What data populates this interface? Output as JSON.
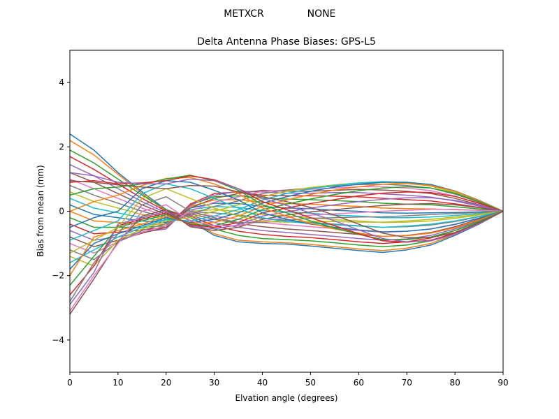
{
  "figure": {
    "suptitle_left": "METXCR",
    "suptitle_right": "NONE"
  },
  "chart_data": {
    "type": "line",
    "title": "Delta Antenna Phase Biases: GPS-L5",
    "xlabel": "Elvation angle (degrees)",
    "ylabel": "Bias from mean (mm)",
    "xlim": [
      0,
      90
    ],
    "ylim": [
      -5,
      5
    ],
    "xticks": [
      0,
      10,
      20,
      30,
      40,
      50,
      60,
      70,
      80,
      90
    ],
    "xtick_labels": [
      "0",
      "10",
      "20",
      "30",
      "40",
      "50",
      "60",
      "70",
      "80",
      "90"
    ],
    "yticks": [
      -4,
      -2,
      0,
      2,
      4
    ],
    "ytick_labels": [
      "−4",
      "−2",
      "0",
      "2",
      "4"
    ],
    "grid": false,
    "legend": "none",
    "colors": [
      "#1f77b4",
      "#ff7f0e",
      "#2ca02c",
      "#d62728",
      "#9467bd",
      "#8c564b",
      "#e377c2",
      "#7f7f7f",
      "#bcbd22",
      "#17becf"
    ],
    "x": [
      0,
      5,
      10,
      15,
      20,
      25,
      30,
      35,
      40,
      45,
      50,
      55,
      60,
      65,
      70,
      75,
      80,
      85,
      90
    ],
    "series": [
      {
        "values": [
          2.4,
          1.9,
          1.2,
          0.6,
          0.05,
          -0.3,
          -0.75,
          -0.95,
          -1.0,
          -1.02,
          -1.08,
          -1.15,
          -1.22,
          -1.28,
          -1.2,
          -1.05,
          -0.75,
          -0.4,
          0.0
        ]
      },
      {
        "values": [
          2.2,
          1.75,
          1.15,
          0.55,
          0.0,
          -0.28,
          -0.7,
          -0.9,
          -0.95,
          -0.98,
          -1.03,
          -1.1,
          -1.17,
          -1.22,
          -1.15,
          -1.0,
          -0.72,
          -0.38,
          0.0
        ]
      },
      {
        "values": [
          1.9,
          1.5,
          1.0,
          0.5,
          0.05,
          -0.2,
          -0.55,
          -0.75,
          -0.85,
          -0.88,
          -0.92,
          -0.98,
          -1.05,
          -1.1,
          -1.05,
          -0.92,
          -0.66,
          -0.35,
          0.0
        ]
      },
      {
        "values": [
          1.7,
          1.3,
          0.85,
          0.4,
          0.0,
          -0.15,
          -0.45,
          -0.62,
          -0.72,
          -0.78,
          -0.82,
          -0.88,
          -0.95,
          -1.0,
          -0.95,
          -0.83,
          -0.6,
          -0.32,
          0.0
        ]
      },
      {
        "values": [
          1.45,
          1.1,
          0.7,
          0.3,
          -0.05,
          -0.12,
          -0.35,
          -0.5,
          -0.6,
          -0.66,
          -0.72,
          -0.78,
          -0.85,
          -0.9,
          -0.86,
          -0.75,
          -0.55,
          -0.29,
          0.0
        ]
      },
      {
        "values": [
          1.2,
          0.9,
          0.55,
          0.2,
          -0.1,
          -0.08,
          -0.25,
          -0.38,
          -0.48,
          -0.55,
          -0.6,
          -0.66,
          -0.72,
          -0.78,
          -0.75,
          -0.66,
          -0.48,
          -0.25,
          0.0
        ]
      },
      {
        "values": [
          1.0,
          0.7,
          0.4,
          0.1,
          -0.15,
          -0.05,
          -0.15,
          -0.25,
          -0.35,
          -0.42,
          -0.48,
          -0.54,
          -0.6,
          -0.65,
          -0.62,
          -0.55,
          -0.4,
          -0.21,
          0.0
        ]
      },
      {
        "values": [
          0.8,
          0.5,
          0.25,
          0.0,
          -0.2,
          -0.02,
          -0.05,
          -0.12,
          -0.22,
          -0.28,
          -0.34,
          -0.4,
          -0.45,
          -0.5,
          -0.48,
          -0.43,
          -0.32,
          -0.17,
          0.0
        ]
      },
      {
        "values": [
          0.6,
          0.3,
          0.1,
          -0.1,
          -0.25,
          0.0,
          0.05,
          0.0,
          -0.1,
          -0.15,
          -0.2,
          -0.26,
          -0.3,
          -0.35,
          -0.34,
          -0.3,
          -0.22,
          -0.12,
          0.0
        ]
      },
      {
        "values": [
          0.4,
          0.1,
          -0.05,
          -0.2,
          -0.3,
          0.05,
          0.15,
          0.12,
          0.02,
          -0.02,
          -0.06,
          -0.12,
          -0.15,
          -0.2,
          -0.2,
          -0.18,
          -0.13,
          -0.07,
          0.0
        ]
      },
      {
        "values": [
          0.2,
          -0.1,
          -0.2,
          -0.3,
          -0.35,
          0.1,
          0.25,
          0.24,
          0.15,
          0.1,
          0.08,
          0.03,
          0.0,
          -0.05,
          -0.06,
          -0.05,
          -0.04,
          -0.02,
          0.0
        ]
      },
      {
        "values": [
          0.0,
          -0.3,
          -0.35,
          -0.4,
          -0.4,
          0.15,
          0.35,
          0.36,
          0.28,
          0.24,
          0.22,
          0.18,
          0.15,
          0.1,
          0.08,
          0.07,
          0.05,
          0.03,
          0.0
        ]
      },
      {
        "values": [
          -0.2,
          -0.5,
          -0.5,
          -0.5,
          -0.45,
          0.2,
          0.45,
          0.48,
          0.4,
          0.38,
          0.36,
          0.33,
          0.3,
          0.25,
          0.22,
          0.2,
          0.14,
          0.07,
          0.0
        ]
      },
      {
        "values": [
          -0.4,
          -0.7,
          -0.65,
          -0.58,
          -0.5,
          0.22,
          0.55,
          0.6,
          0.5,
          0.48,
          0.48,
          0.47,
          0.45,
          0.4,
          0.36,
          0.32,
          0.23,
          0.12,
          0.0
        ]
      },
      {
        "values": [
          -0.6,
          -0.9,
          -0.8,
          -0.65,
          -0.55,
          0.18,
          0.5,
          0.62,
          0.6,
          0.56,
          0.56,
          0.58,
          0.58,
          0.54,
          0.5,
          0.44,
          0.32,
          0.16,
          0.0
        ]
      },
      {
        "values": [
          -0.8,
          -1.1,
          -0.9,
          -0.68,
          -0.5,
          0.1,
          0.4,
          0.55,
          0.65,
          0.62,
          0.62,
          0.65,
          0.68,
          0.66,
          0.62,
          0.55,
          0.4,
          0.2,
          0.0
        ]
      },
      {
        "values": [
          -1.0,
          -1.3,
          -0.95,
          -0.65,
          -0.45,
          0.0,
          0.28,
          0.45,
          0.62,
          0.66,
          0.68,
          0.72,
          0.76,
          0.76,
          0.72,
          0.64,
          0.47,
          0.24,
          0.0
        ]
      },
      {
        "values": [
          -1.2,
          -1.5,
          -0.95,
          -0.6,
          -0.38,
          -0.1,
          0.15,
          0.32,
          0.55,
          0.66,
          0.72,
          0.78,
          0.83,
          0.84,
          0.8,
          0.72,
          0.53,
          0.28,
          0.0
        ]
      },
      {
        "values": [
          -1.4,
          -1.7,
          -0.9,
          -0.55,
          -0.3,
          -0.2,
          0.0,
          0.2,
          0.45,
          0.62,
          0.74,
          0.82,
          0.88,
          0.9,
          0.87,
          0.78,
          0.58,
          0.3,
          0.0
        ]
      },
      {
        "values": [
          -1.6,
          -1.2,
          -0.8,
          -0.5,
          -0.25,
          -0.3,
          -0.15,
          0.05,
          0.35,
          0.55,
          0.7,
          0.8,
          0.88,
          0.92,
          0.9,
          0.82,
          0.62,
          0.33,
          0.0
        ]
      },
      {
        "values": [
          -1.8,
          -1.0,
          -0.7,
          -0.45,
          -0.2,
          -0.35,
          -0.25,
          -0.05,
          0.25,
          0.45,
          0.62,
          0.75,
          0.84,
          0.9,
          0.9,
          0.83,
          0.63,
          0.34,
          0.0
        ]
      },
      {
        "values": [
          -2.0,
          -0.8,
          -0.6,
          -0.4,
          -0.15,
          -0.38,
          -0.35,
          -0.15,
          0.15,
          0.35,
          0.52,
          0.66,
          0.76,
          0.84,
          0.86,
          0.8,
          0.62,
          0.33,
          0.0
        ]
      },
      {
        "values": [
          -2.3,
          -1.4,
          -0.5,
          -0.3,
          -0.1,
          -0.4,
          -0.45,
          -0.25,
          0.05,
          0.22,
          0.38,
          0.52,
          0.64,
          0.72,
          0.76,
          0.72,
          0.56,
          0.3,
          0.0
        ]
      },
      {
        "values": [
          -2.6,
          -1.7,
          -0.45,
          -0.25,
          -0.05,
          -0.42,
          -0.5,
          -0.35,
          -0.05,
          0.1,
          0.24,
          0.36,
          0.48,
          0.56,
          0.6,
          0.58,
          0.46,
          0.25,
          0.0
        ]
      },
      {
        "values": [
          -2.9,
          -1.9,
          -0.4,
          -0.2,
          0.0,
          -0.45,
          -0.55,
          -0.42,
          -0.15,
          -0.02,
          0.1,
          0.2,
          0.3,
          0.37,
          0.42,
          0.42,
          0.34,
          0.19,
          0.0
        ]
      },
      {
        "values": [
          -3.2,
          -2.1,
          -0.95,
          -0.15,
          0.05,
          -0.48,
          -0.6,
          -0.5,
          -0.25,
          -0.12,
          -0.02,
          0.05,
          0.12,
          0.18,
          0.22,
          0.24,
          0.2,
          0.11,
          0.0
        ]
      },
      {
        "values": [
          -3.1,
          -2.0,
          -1.0,
          0.0,
          0.2,
          -0.3,
          -0.45,
          -0.45,
          -0.3,
          -0.2,
          -0.12,
          -0.08,
          -0.04,
          0.0,
          0.03,
          0.06,
          0.06,
          0.03,
          0.0
        ]
      },
      {
        "values": [
          -2.8,
          -1.6,
          -0.7,
          0.2,
          0.45,
          0.0,
          -0.2,
          -0.35,
          -0.35,
          -0.28,
          -0.22,
          -0.2,
          -0.18,
          -0.17,
          -0.14,
          -0.1,
          -0.07,
          -0.04,
          0.0
        ]
      },
      {
        "values": [
          -1.3,
          -0.9,
          -0.5,
          0.4,
          0.7,
          0.4,
          0.1,
          -0.15,
          -0.32,
          -0.34,
          -0.32,
          -0.32,
          -0.34,
          -0.34,
          -0.3,
          -0.25,
          -0.18,
          -0.1,
          0.0
        ]
      },
      {
        "values": [
          -0.9,
          -0.6,
          -0.3,
          0.55,
          0.85,
          0.7,
          0.4,
          0.1,
          -0.2,
          -0.32,
          -0.38,
          -0.42,
          -0.46,
          -0.5,
          -0.46,
          -0.4,
          -0.3,
          -0.16,
          0.0
        ]
      },
      {
        "values": [
          -0.5,
          -0.2,
          0.0,
          0.7,
          0.95,
          0.9,
          0.65,
          0.35,
          -0.05,
          -0.25,
          -0.4,
          -0.5,
          -0.58,
          -0.64,
          -0.62,
          -0.55,
          -0.41,
          -0.22,
          0.0
        ]
      },
      {
        "values": [
          0.0,
          0.3,
          0.5,
          0.8,
          1.02,
          1.05,
          0.85,
          0.55,
          0.1,
          -0.15,
          -0.38,
          -0.55,
          -0.68,
          -0.78,
          -0.76,
          -0.68,
          -0.51,
          -0.27,
          0.0
        ]
      },
      {
        "values": [
          0.5,
          0.7,
          0.75,
          0.85,
          1.0,
          1.12,
          0.95,
          0.65,
          0.2,
          -0.05,
          -0.3,
          -0.52,
          -0.72,
          -0.88,
          -0.88,
          -0.8,
          -0.6,
          -0.32,
          0.0
        ]
      },
      {
        "values": [
          0.9,
          0.95,
          0.85,
          0.88,
          0.95,
          1.1,
          0.98,
          0.7,
          0.3,
          0.05,
          -0.2,
          -0.45,
          -0.7,
          -0.92,
          -0.96,
          -0.9,
          -0.68,
          -0.36,
          0.0
        ]
      },
      {
        "values": [
          1.2,
          1.1,
          0.9,
          0.85,
          0.85,
          1.0,
          0.95,
          0.7,
          0.4,
          0.18,
          -0.05,
          -0.3,
          -0.58,
          -0.85,
          -0.95,
          -0.92,
          -0.72,
          -0.39,
          0.0
        ]
      },
      {
        "values": [
          0.95,
          0.9,
          0.82,
          0.75,
          0.7,
          0.8,
          0.78,
          0.6,
          0.45,
          0.3,
          0.12,
          -0.12,
          -0.4,
          -0.68,
          -0.82,
          -0.82,
          -0.66,
          -0.36,
          0.0
        ]
      }
    ]
  }
}
